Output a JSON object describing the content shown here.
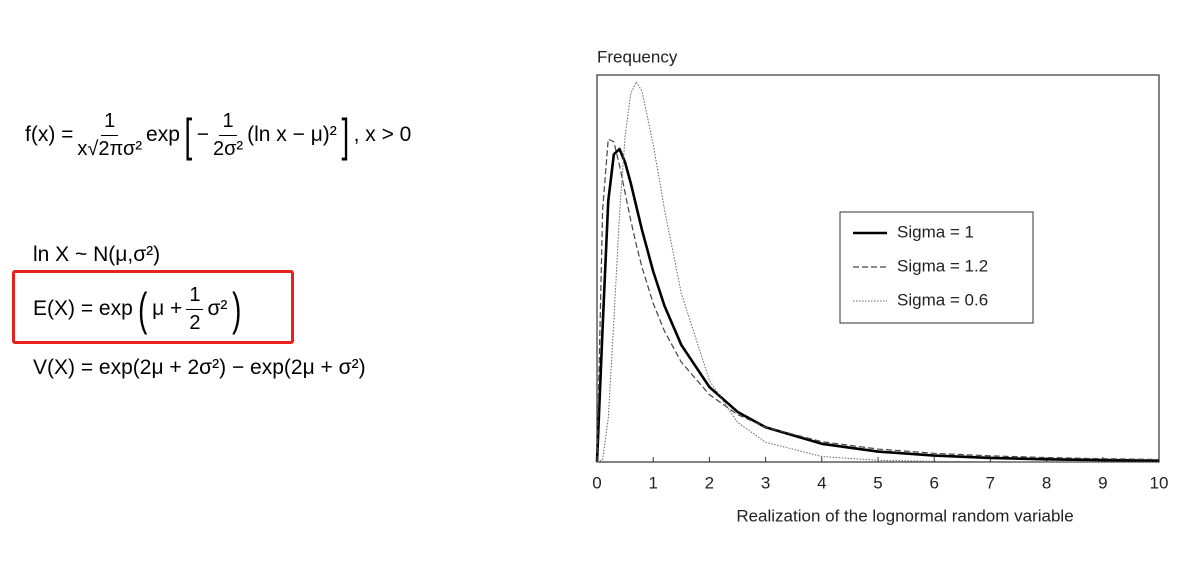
{
  "formulas": {
    "pdf": {
      "lhs": "f(x) =",
      "num": "1",
      "den": "x√2πσ²",
      "exp": "exp",
      "minus": "−",
      "num2": "1",
      "den2": "2σ²",
      "tail": "(ln x − μ)²",
      "rhs": ", x > 0"
    },
    "dist": "ln X ~ N(μ,σ²)",
    "mean": {
      "lhs": "E(X) = exp",
      "mu": "μ +",
      "num": "1",
      "den": "2",
      "s": "σ²"
    },
    "var": "V(X) = exp(2μ + 2σ²) − exp(2μ + σ²)"
  },
  "chart_data": {
    "type": "line",
    "y_label": "Frequency",
    "x_label": "Realization of the lognormal random variable",
    "x": [
      0,
      0.1,
      0.2,
      0.3,
      0.4,
      0.5,
      0.6,
      0.7,
      0.8,
      1,
      1.2,
      1.5,
      2,
      2.5,
      3,
      4,
      5,
      6,
      7,
      8,
      9,
      10
    ],
    "series": [
      {
        "name": "Sigma = 1",
        "color": "#000000",
        "style": "solid",
        "values": [
          0,
          0.282,
          0.546,
          0.644,
          0.655,
          0.627,
          0.584,
          0.535,
          0.486,
          0.399,
          0.327,
          0.245,
          0.157,
          0.105,
          0.0727,
          0.0381,
          0.0219,
          0.0134,
          0.0086,
          0.0057,
          0.004,
          0.0028
        ]
      },
      {
        "name": "Sigma = 1.2",
        "color": "#444444",
        "style": "dashed",
        "values": [
          0,
          0.528,
          0.676,
          0.67,
          0.621,
          0.563,
          0.506,
          0.454,
          0.408,
          0.332,
          0.274,
          0.209,
          0.141,
          0.0993,
          0.0729,
          0.0426,
          0.0271,
          0.0182,
          0.0128,
          0.0093,
          0.0069,
          0.0053
        ]
      },
      {
        "name": "Sigma = 0.6",
        "color": "#666666",
        "style": "dotted",
        "values": [
          0,
          0.0042,
          0.091,
          0.296,
          0.518,
          0.682,
          0.771,
          0.796,
          0.776,
          0.665,
          0.529,
          0.353,
          0.171,
          0.0829,
          0.0415,
          0.0115,
          0.0036,
          0.0013,
          0.0005,
          0.0002,
          0.0001,
          0
        ]
      }
    ],
    "xlim": [
      0,
      10
    ],
    "xticks": [
      0,
      1,
      2,
      3,
      4,
      5,
      6,
      7,
      8,
      9,
      10
    ],
    "ylim": [
      0,
      0.81
    ],
    "grid": false
  }
}
